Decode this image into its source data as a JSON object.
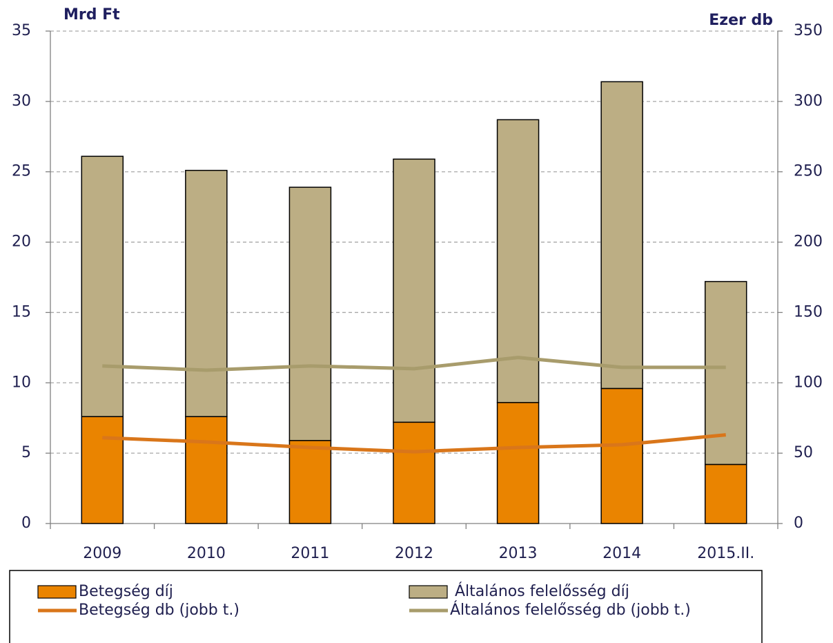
{
  "chart_data": {
    "type": "bar",
    "stacked": true,
    "y_label": "Mrd Ft",
    "y2_label": "Ezer db",
    "categories": [
      "2009",
      "2010",
      "2011",
      "2012",
      "2013",
      "2014",
      "2015.II."
    ],
    "series": [
      {
        "name": "Betegség díj",
        "type": "bar",
        "color": "#ea8400",
        "values": [
          7.6,
          7.6,
          5.9,
          7.2,
          8.6,
          9.6,
          4.2
        ]
      },
      {
        "name": "Általános felelősség díj",
        "type": "bar",
        "color": "#bcae84",
        "values": [
          18.5,
          17.5,
          18.0,
          18.7,
          20.1,
          21.8,
          13.0
        ]
      },
      {
        "name": "Betegség db (jobb t.)",
        "type": "line",
        "axis": "y2",
        "color": "#d9761a",
        "values": [
          61,
          58,
          54,
          51,
          54,
          56,
          63
        ]
      },
      {
        "name": "Általános felelősség db (jobb t.)",
        "type": "line",
        "axis": "y2",
        "color": "#a89c6c",
        "values": [
          112,
          109,
          112,
          110,
          118,
          111,
          111
        ]
      }
    ],
    "ylim": [
      0,
      35
    ],
    "yticks": [
      0,
      5,
      10,
      15,
      20,
      25,
      30,
      35
    ],
    "y2lim": [
      0,
      350
    ],
    "y2ticks": [
      0,
      50,
      100,
      150,
      200,
      250,
      300,
      350
    ],
    "grid": true,
    "legend": "bottom"
  }
}
